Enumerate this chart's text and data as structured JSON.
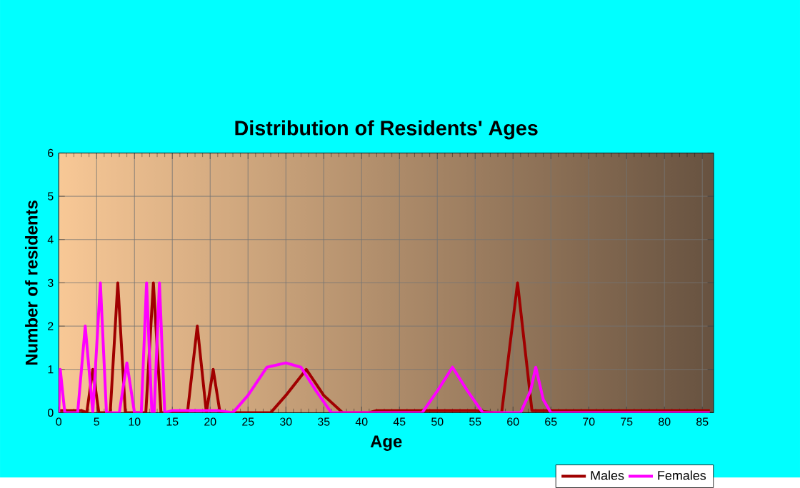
{
  "chart_data": {
    "type": "line",
    "title": "Distribution of Residents' Ages",
    "xlabel": "Age",
    "ylabel": "Number of residents",
    "xlim": [
      0,
      86.5
    ],
    "ylim": [
      0,
      6
    ],
    "xticks": [
      0,
      5,
      10,
      15,
      20,
      25,
      30,
      35,
      40,
      45,
      50,
      55,
      60,
      65,
      70,
      75,
      80,
      85
    ],
    "yticks": [
      0,
      1,
      2,
      3,
      4,
      5,
      6
    ],
    "grid": true,
    "legend": "bottom right",
    "marker": "none",
    "line_style": "solid",
    "series": [
      {
        "name": "Males",
        "color": "#a00000",
        "x": [
          0,
          3,
          3.7,
          4.5,
          5.3,
          6.8,
          7.8,
          8.8,
          11.5,
          12.5,
          13.5,
          17,
          18.3,
          19.5,
          20.4,
          21.3,
          28,
          30,
          32.7,
          35,
          37.5,
          41,
          42,
          55,
          57.5,
          58.5,
          60.6,
          62.5,
          86
        ],
        "values": [
          0.05,
          0.05,
          0,
          1,
          0,
          0,
          3,
          0,
          0,
          3,
          0,
          0,
          2,
          0,
          1,
          0,
          0,
          0.4,
          1,
          0.4,
          0,
          0,
          0.05,
          0.05,
          0,
          0,
          3,
          0.05,
          0.05
        ]
      },
      {
        "name": "Females",
        "color": "#ff00ff",
        "x": [
          0,
          0.2,
          0.8,
          2.5,
          3.5,
          4.5,
          5.5,
          6.3,
          8,
          9,
          10,
          10.9,
          11.6,
          12.3,
          12.6,
          13.3,
          14,
          15,
          21,
          23,
          25,
          27.5,
          30,
          32,
          34,
          36,
          48,
          50,
          52,
          54,
          56,
          61,
          62.3,
          63,
          64,
          65,
          86
        ],
        "values": [
          0,
          1,
          0,
          0,
          2,
          0,
          3,
          0,
          0,
          1.15,
          0,
          0,
          3,
          0,
          0,
          3,
          0,
          0.05,
          0.05,
          0,
          0.4,
          1.05,
          1.15,
          1.05,
          0.5,
          0,
          0,
          0.5,
          1.05,
          0.5,
          0,
          0,
          0.5,
          1.05,
          0.3,
          0,
          0
        ]
      }
    ]
  }
}
